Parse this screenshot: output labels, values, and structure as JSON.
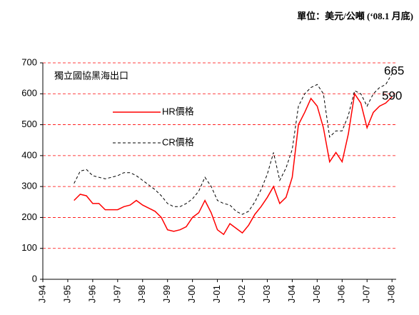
{
  "chart_data": {
    "type": "line",
    "title": "單位：美元/公噸 (‘08.1 月底)",
    "subtitle": "獨立國協黑海出口",
    "annotations": [
      "665",
      "590"
    ],
    "x": [
      "1995-04",
      "1995-07",
      "1995-10",
      "1996-01",
      "1996-04",
      "1996-07",
      "1996-10",
      "1997-01",
      "1997-04",
      "1997-07",
      "1997-10",
      "1998-01",
      "1998-04",
      "1998-07",
      "1998-10",
      "1999-01",
      "1999-04",
      "1999-07",
      "1999-10",
      "2000-01",
      "2000-04",
      "2000-07",
      "2000-10",
      "2001-01",
      "2001-04",
      "2001-07",
      "2001-10",
      "2002-01",
      "2002-04",
      "2002-07",
      "2002-10",
      "2003-01",
      "2003-04",
      "2003-07",
      "2003-10",
      "2004-01",
      "2004-04",
      "2004-07",
      "2004-10",
      "2005-01",
      "2005-04",
      "2005-07",
      "2005-10",
      "2006-01",
      "2006-04",
      "2006-07",
      "2006-10",
      "2007-01",
      "2007-04",
      "2007-07",
      "2007-10",
      "2008-01"
    ],
    "series": [
      {
        "name": "HR價格",
        "color": "#ff0000",
        "dash": false,
        "values": [
          255,
          275,
          270,
          245,
          245,
          225,
          225,
          225,
          235,
          240,
          255,
          240,
          230,
          220,
          200,
          160,
          155,
          160,
          170,
          200,
          215,
          255,
          215,
          160,
          145,
          180,
          165,
          150,
          175,
          210,
          235,
          265,
          300,
          245,
          265,
          330,
          500,
          540,
          585,
          560,
          490,
          380,
          410,
          380,
          470,
          600,
          570,
          490,
          540,
          560,
          570,
          590
        ]
      },
      {
        "name": "CR價格",
        "color": "#000000",
        "dash": true,
        "values": [
          310,
          350,
          355,
          335,
          330,
          325,
          330,
          335,
          345,
          345,
          335,
          320,
          305,
          290,
          270,
          245,
          235,
          235,
          245,
          260,
          285,
          330,
          300,
          255,
          245,
          240,
          220,
          210,
          220,
          250,
          290,
          340,
          410,
          320,
          360,
          420,
          560,
          600,
          620,
          630,
          600,
          460,
          480,
          480,
          530,
          610,
          600,
          560,
          600,
          620,
          630,
          665
        ]
      }
    ],
    "xlim": [
      "1994-01",
      "2008-03"
    ],
    "xticks": [
      {
        "value": "1994-01",
        "label": "J-94"
      },
      {
        "value": "1995-01",
        "label": "J-95"
      },
      {
        "value": "1996-01",
        "label": "J-96"
      },
      {
        "value": "1997-01",
        "label": "J-97"
      },
      {
        "value": "1998-01",
        "label": "J-98"
      },
      {
        "value": "1999-01",
        "label": "J-99"
      },
      {
        "value": "2000-01",
        "label": "J-00"
      },
      {
        "value": "2001-01",
        "label": "J-01"
      },
      {
        "value": "2002-01",
        "label": "J-02"
      },
      {
        "value": "2003-01",
        "label": "J-03"
      },
      {
        "value": "2004-01",
        "label": "J-04"
      },
      {
        "value": "2005-01",
        "label": "J-05"
      },
      {
        "value": "2006-01",
        "label": "J-06"
      },
      {
        "value": "2007-01",
        "label": "J-07"
      },
      {
        "value": "2008-01",
        "label": "J-08"
      }
    ],
    "ylim": [
      0,
      700
    ],
    "yticks": [
      0,
      100,
      200,
      300,
      400,
      500,
      600,
      700
    ],
    "grid": true,
    "grid_color": "#ff0000"
  }
}
